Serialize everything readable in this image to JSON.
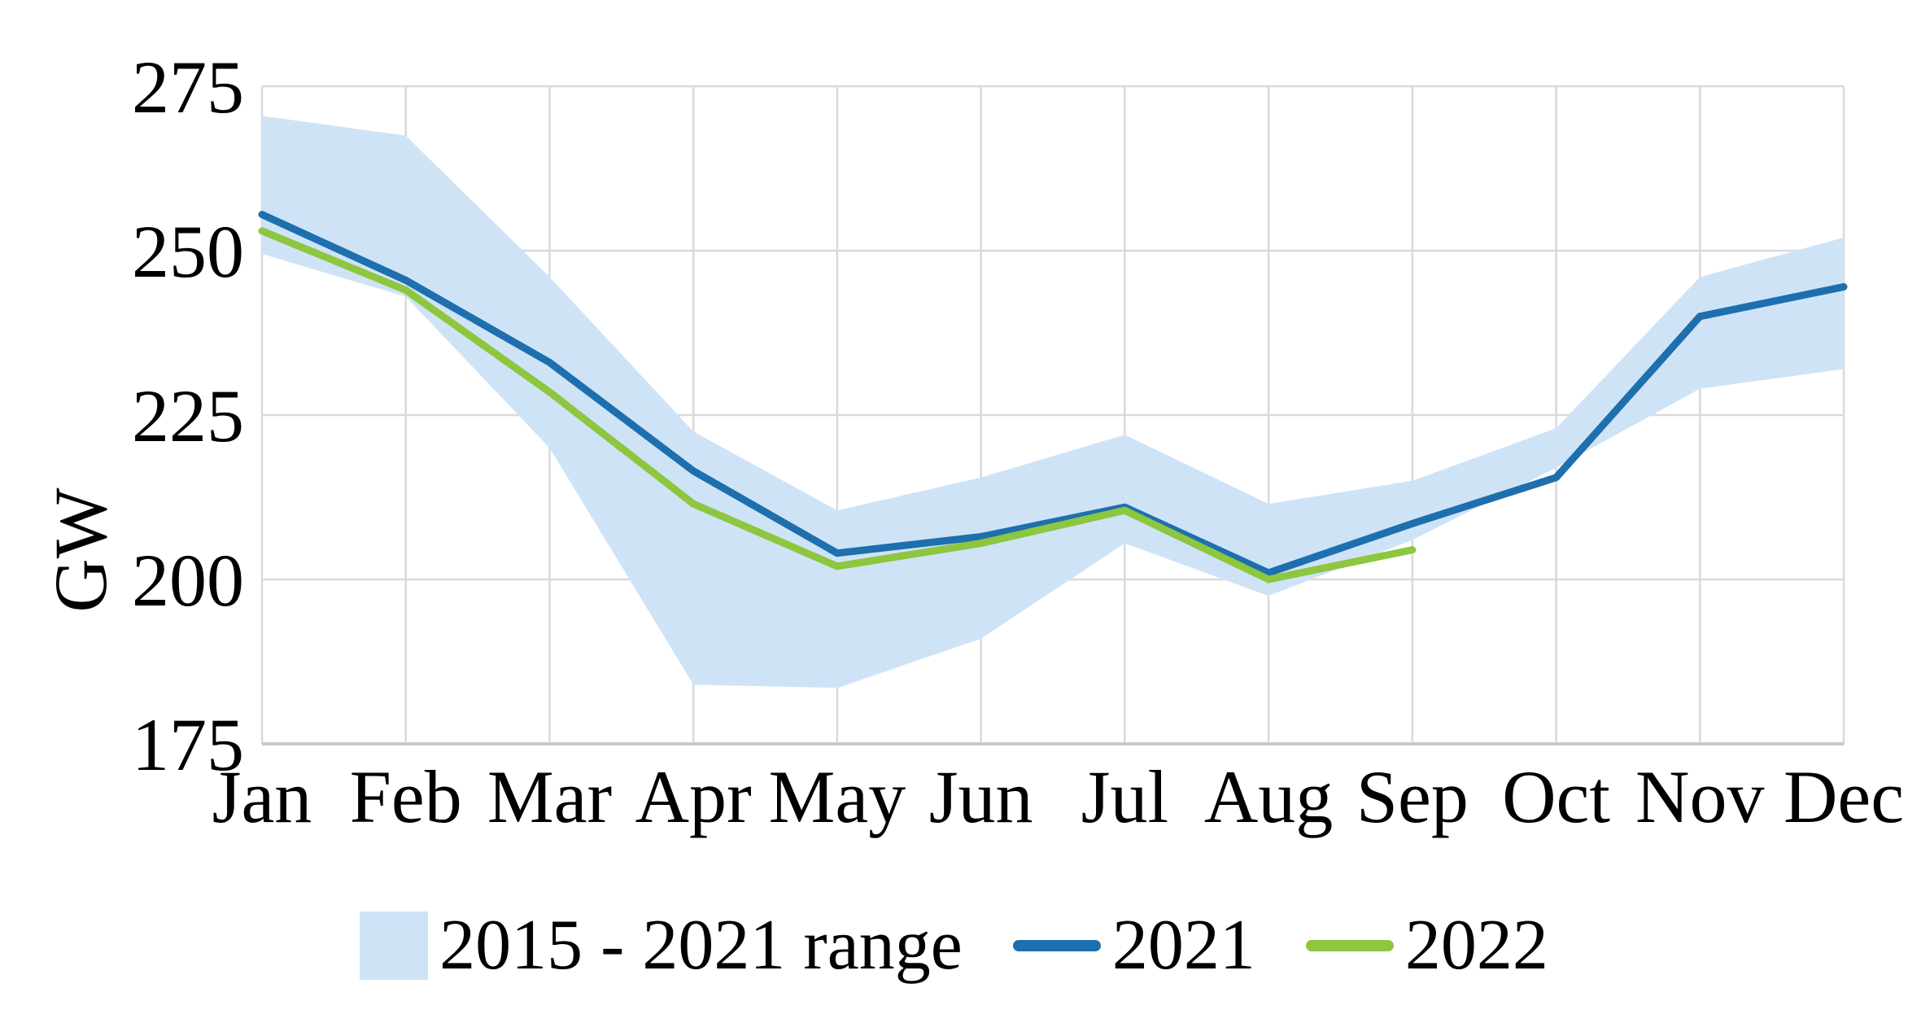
{
  "chart_data": {
    "type": "line",
    "title": "",
    "xlabel": "",
    "ylabel": "GW",
    "categories": [
      "Jan",
      "Feb",
      "Mar",
      "Apr",
      "May",
      "Jun",
      "Jul",
      "Aug",
      "Sep",
      "Oct",
      "Nov",
      "Dec"
    ],
    "y_ticks": [
      175,
      200,
      225,
      250,
      275
    ],
    "ylim": [
      175,
      275
    ],
    "grid": "both",
    "legend_position": "bottom",
    "series": [
      {
        "name": "2015 - 2021 range",
        "type": "band",
        "color": "#cfe3f7",
        "upper": [
          270.5,
          267.5,
          246,
          222.5,
          210.5,
          215.5,
          222,
          211.5,
          215,
          223,
          246,
          252
        ],
        "lower": [
          249.5,
          243,
          220,
          184,
          183.5,
          191,
          205.5,
          197.5,
          206,
          217,
          229,
          232
        ]
      },
      {
        "name": "2021",
        "type": "line",
        "color": "#1e6fad",
        "values": [
          255.5,
          245.5,
          233,
          216.5,
          204,
          206.5,
          211,
          201,
          208.5,
          215.5,
          240,
          244.5
        ]
      },
      {
        "name": "2022",
        "type": "line",
        "color": "#8dc63f",
        "values": [
          253,
          244,
          228.5,
          211.5,
          202,
          205.5,
          210.5,
          200,
          204.5
        ]
      }
    ],
    "colors": {
      "grid": "#d9d9d9",
      "axis_line": "#c9c9c9",
      "text": "#000000",
      "background": "#ffffff"
    }
  }
}
